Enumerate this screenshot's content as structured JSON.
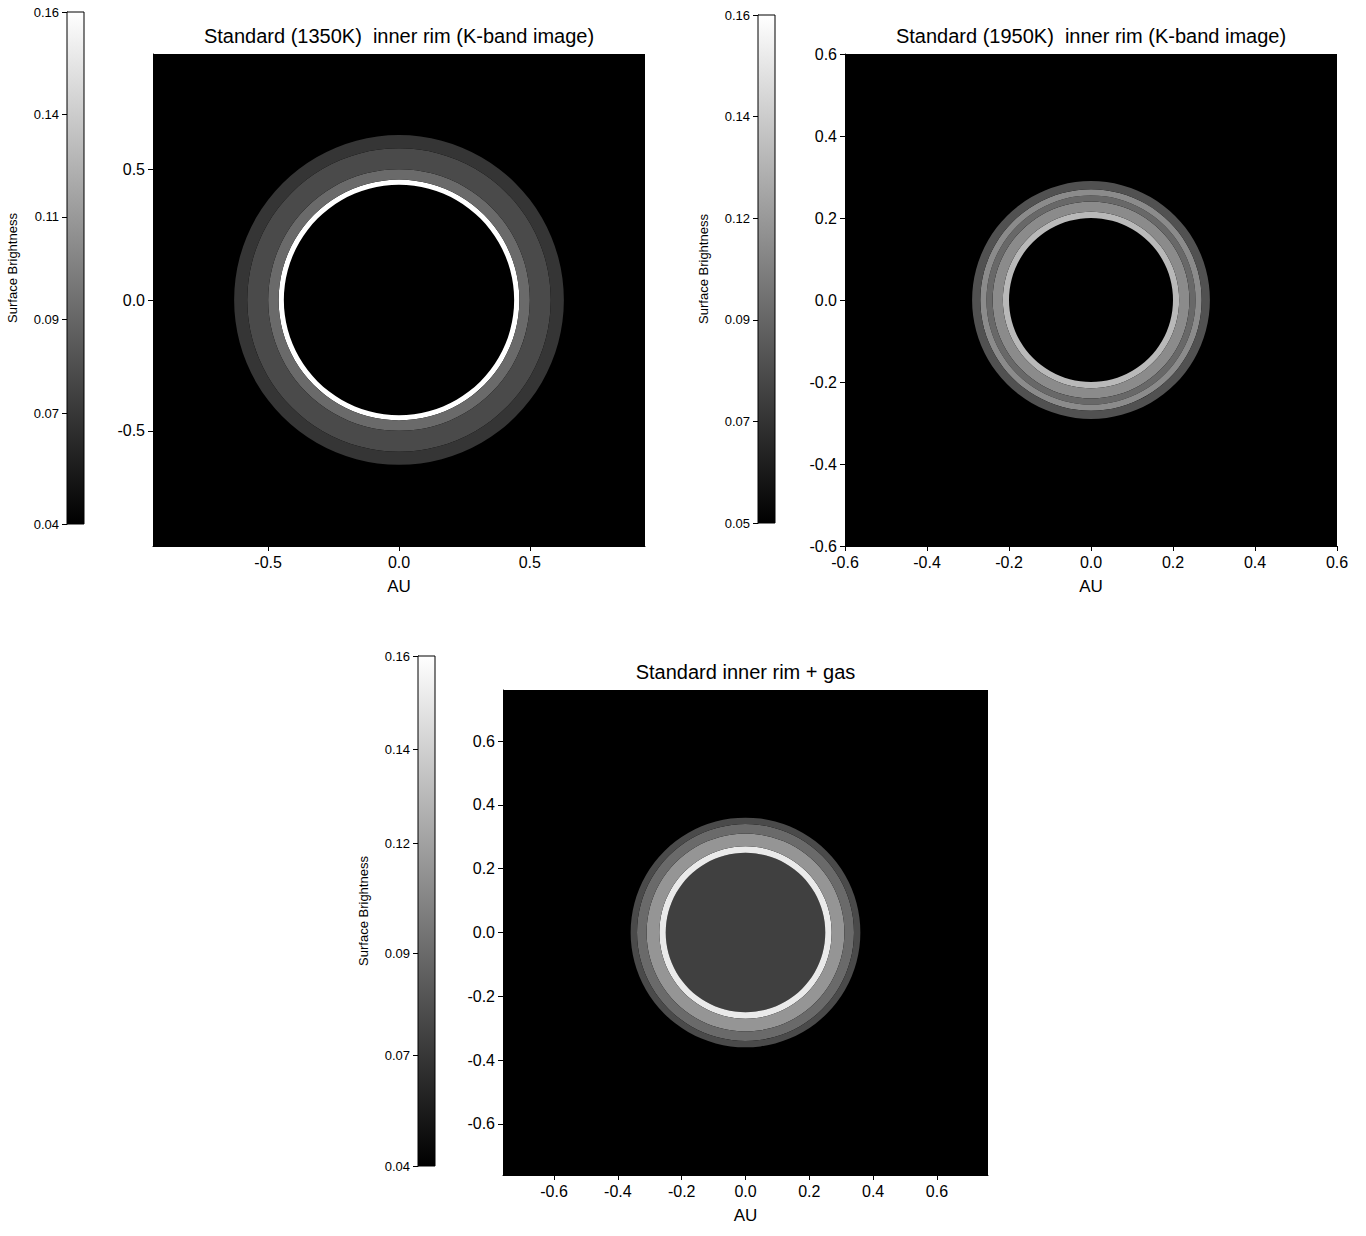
{
  "chart_data": [
    {
      "type": "ring_image",
      "title": "Standard (1350K)  inner rim (K-band image)",
      "x_label": "AU",
      "xlim": [
        -0.94,
        0.94
      ],
      "ylim": [
        -0.94,
        0.94
      ],
      "xticks": [
        -0.5,
        {
          "value": 0,
          "label": "0.0"
        },
        0.5
      ],
      "yticks": [
        -0.5,
        {
          "value": 0,
          "label": "0.0"
        },
        0.5
      ],
      "grid": false,
      "background": 0.04,
      "rings": [
        {
          "r_inner": 0.44,
          "r_outer": 0.46,
          "brightness": 0.16
        },
        {
          "r_inner": 0.46,
          "r_outer": 0.5,
          "brightness": 0.09
        },
        {
          "r_inner": 0.5,
          "r_outer": 0.58,
          "brightness": 0.075
        },
        {
          "r_inner": 0.58,
          "r_outer": 0.63,
          "brightness": 0.065
        }
      ],
      "colorbar": {
        "label": "Surface Brightness",
        "range": [
          0.04,
          0.16
        ],
        "ticks": [
          0.04,
          {
            "value": 0.066,
            "label": "0.07"
          },
          {
            "value": 0.088,
            "label": "0.09"
          },
          {
            "value": 0.112,
            "label": "0.11"
          },
          {
            "value": 0.136,
            "label": "0.14"
          },
          0.16
        ]
      }
    },
    {
      "type": "ring_image",
      "title": "Standard (1950K)  inner rim (K-band image)",
      "x_label": "AU",
      "xlim": [
        -0.6,
        0.6
      ],
      "ylim": [
        -0.6,
        0.6
      ],
      "xticks": [
        -0.6,
        -0.4,
        -0.2,
        {
          "value": 0,
          "label": "0.0"
        },
        0.2,
        0.4,
        0.6
      ],
      "yticks": [
        -0.6,
        -0.4,
        -0.2,
        {
          "value": 0,
          "label": "0.0"
        },
        0.2,
        0.4,
        0.6
      ],
      "grid": false,
      "background": 0.05,
      "rings": [
        {
          "r_inner": 0.2,
          "r_outer": 0.215,
          "brightness": 0.13
        },
        {
          "r_inner": 0.215,
          "r_outer": 0.24,
          "brightness": 0.11
        },
        {
          "r_inner": 0.24,
          "r_outer": 0.255,
          "brightness": 0.095
        },
        {
          "r_inner": 0.255,
          "r_outer": 0.27,
          "brightness": 0.11
        },
        {
          "r_inner": 0.27,
          "r_outer": 0.29,
          "brightness": 0.085
        }
      ],
      "colorbar": {
        "label": "Surface Brightness",
        "range": [
          0.05,
          0.16
        ],
        "ticks": [
          0.05,
          {
            "value": 0.072,
            "label": "0.07"
          },
          {
            "value": 0.094,
            "label": "0.09"
          },
          {
            "value": 0.116,
            "label": "0.12"
          },
          {
            "value": 0.138,
            "label": "0.14"
          },
          0.16
        ]
      }
    },
    {
      "type": "ring_image",
      "title": "Standard inner rim + gas",
      "x_label": "AU",
      "xlim": [
        -0.76,
        0.76
      ],
      "ylim": [
        -0.76,
        0.76
      ],
      "xticks": [
        -0.6,
        -0.4,
        -0.2,
        {
          "value": 0,
          "label": "0.0"
        },
        0.2,
        0.4,
        0.6
      ],
      "yticks": [
        -0.6,
        -0.4,
        -0.2,
        {
          "value": 0,
          "label": "0.0"
        },
        0.2,
        0.4,
        0.6
      ],
      "grid": false,
      "background": 0.04,
      "rings": [
        {
          "r_inner": 0,
          "r_outer": 0.25,
          "brightness": 0.07
        },
        {
          "r_inner": 0.25,
          "r_outer": 0.27,
          "brightness": 0.15
        },
        {
          "r_inner": 0.27,
          "r_outer": 0.31,
          "brightness": 0.11
        },
        {
          "r_inner": 0.31,
          "r_outer": 0.34,
          "brightness": 0.09
        },
        {
          "r_inner": 0.34,
          "r_outer": 0.36,
          "brightness": 0.075
        }
      ],
      "colorbar": {
        "label": "Surface Brightness",
        "range": [
          0.04,
          0.16
        ],
        "ticks": [
          0.04,
          {
            "value": 0.066,
            "label": "0.07"
          },
          {
            "value": 0.09,
            "label": "0.09"
          },
          {
            "value": 0.116,
            "label": "0.12"
          },
          {
            "value": 0.138,
            "label": "0.14"
          },
          0.16
        ]
      }
    }
  ]
}
